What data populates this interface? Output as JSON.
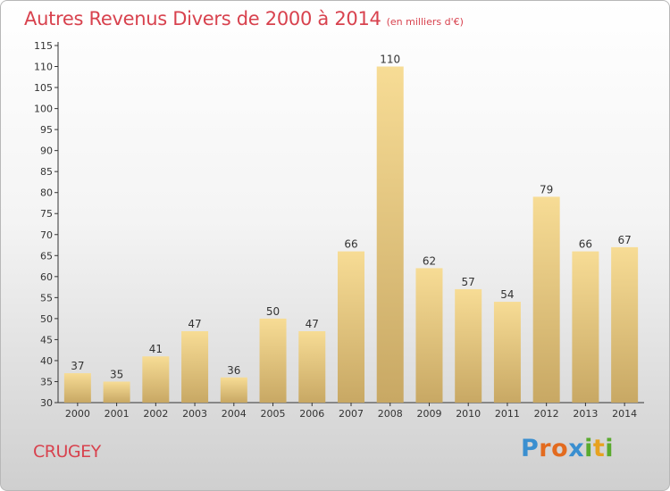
{
  "title": "Autres Revenus Divers de 2000 à 2014",
  "subtitle": "(en milliers d'€)",
  "place": "CRUGEY",
  "logo": {
    "letters": [
      "P",
      "r",
      "o",
      "x",
      "i",
      "t",
      "i"
    ],
    "colors": [
      "#3a8fd0",
      "#e36b1f",
      "#e36b1f",
      "#3a8fd0",
      "#5aaa2e",
      "#e7a21f",
      "#5aaa2e"
    ]
  },
  "colors": {
    "title": "#d8424e",
    "bar_light": "#f7dc95",
    "bar_dark": "#c8a864",
    "axis": "#333333",
    "grid": "#d9d9d9"
  },
  "chart_data": {
    "type": "bar",
    "title": "Autres Revenus Divers de 2000 à 2014",
    "subtitle": "(en milliers d'€)",
    "categories": [
      "2000",
      "2001",
      "2002",
      "2003",
      "2004",
      "2005",
      "2006",
      "2007",
      "2008",
      "2009",
      "2010",
      "2011",
      "2012",
      "2013",
      "2014"
    ],
    "values": [
      37,
      35,
      41,
      47,
      36,
      50,
      47,
      66,
      110,
      62,
      57,
      54,
      79,
      66,
      67
    ],
    "ylim": [
      30,
      115
    ],
    "yticks": [
      30,
      35,
      40,
      45,
      50,
      55,
      60,
      65,
      70,
      75,
      80,
      85,
      90,
      95,
      100,
      105,
      110,
      115
    ],
    "grid": false,
    "data_labels": true
  }
}
